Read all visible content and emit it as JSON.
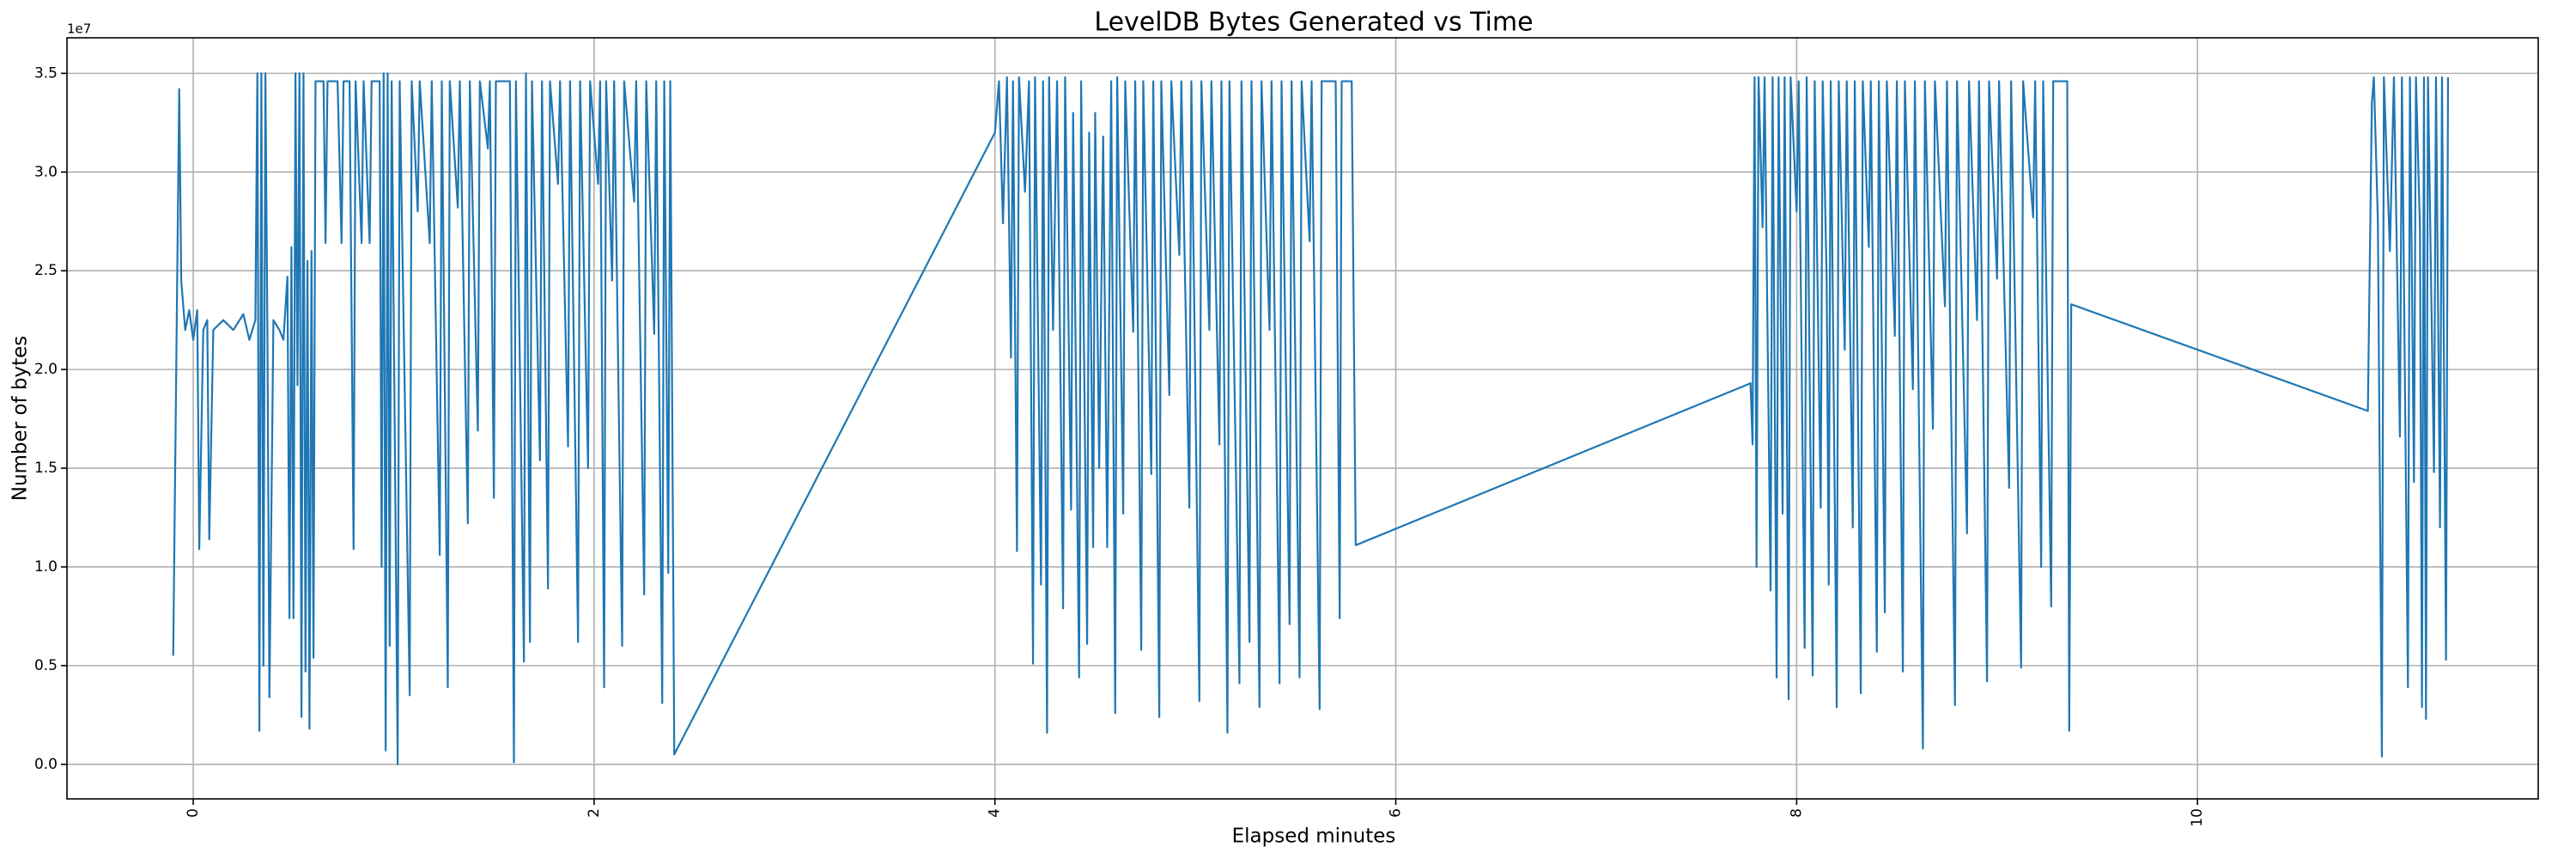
{
  "chart_data": {
    "type": "line",
    "title": "LevelDB Bytes Generated vs Time",
    "x_label": "Elapsed minutes",
    "y_label": "Number of bytes",
    "y_offset_text": "1e7",
    "xlim": [
      -0.63,
      11.7
    ],
    "ylim": [
      -0.175,
      3.68
    ],
    "xticks": [
      0,
      2,
      4,
      6,
      8,
      10
    ],
    "yticks": [
      {
        "value": 0,
        "label": "0.0"
      },
      0.5,
      {
        "value": 1,
        "label": "1.0"
      },
      1.5,
      {
        "value": 2,
        "label": "2.0"
      },
      2.5,
      {
        "value": 3,
        "label": "3.0"
      },
      3.5
    ],
    "grid": true,
    "x": [
      -0.1,
      -0.07,
      -0.06,
      -0.04,
      -0.02,
      0,
      0.02,
      0.03,
      0.05,
      0.07,
      0.08,
      0.1,
      0.15,
      0.2,
      0.25,
      0.28,
      0.31,
      0.32,
      0.33,
      0.34,
      0.35,
      0.36,
      0.37,
      0.38,
      0.4,
      0.43,
      0.45,
      0.47,
      0.48,
      0.49,
      0.5,
      0.51,
      0.52,
      0.53,
      0.54,
      0.55,
      0.56,
      0.57,
      0.58,
      0.59,
      0.6,
      0.61,
      0.65,
      0.66,
      0.67,
      0.72,
      0.74,
      0.75,
      0.78,
      0.8,
      0.81,
      0.84,
      0.85,
      0.88,
      0.89,
      0.93,
      0.94,
      0.95,
      0.96,
      0.97,
      0.98,
      0.99,
      1.02,
      1.03,
      1.08,
      1.09,
      1.12,
      1.13,
      1.18,
      1.19,
      1.23,
      1.24,
      1.27,
      1.28,
      1.32,
      1.33,
      1.37,
      1.38,
      1.42,
      1.43,
      1.47,
      1.48,
      1.5,
      1.51,
      1.58,
      1.6,
      1.61,
      1.65,
      1.66,
      1.68,
      1.69,
      1.73,
      1.74,
      1.77,
      1.78,
      1.82,
      1.83,
      1.87,
      1.88,
      1.92,
      1.93,
      1.97,
      1.98,
      2.02,
      2.03,
      2.05,
      2.06,
      2.09,
      2.1,
      2.14,
      2.15,
      2.2,
      2.21,
      2.25,
      2.26,
      2.3,
      2.31,
      2.34,
      2.35,
      2.37,
      2.38,
      2.4,
      4,
      4.02,
      4.04,
      4.06,
      4.08,
      4.09,
      4.11,
      4.12,
      4.15,
      4.17,
      4.19,
      4.2,
      4.23,
      4.24,
      4.26,
      4.27,
      4.29,
      4.31,
      4.34,
      4.35,
      4.38,
      4.39,
      4.42,
      4.43,
      4.46,
      4.47,
      4.49,
      4.5,
      4.52,
      4.54,
      4.56,
      4.58,
      4.6,
      4.61,
      4.64,
      4.65,
      4.69,
      4.7,
      4.73,
      4.74,
      4.78,
      4.79,
      4.82,
      4.83,
      4.87,
      4.88,
      4.92,
      4.93,
      4.97,
      4.98,
      5.02,
      5.03,
      5.07,
      5.08,
      5.12,
      5.13,
      5.16,
      5.17,
      5.22,
      5.23,
      5.27,
      5.28,
      5.32,
      5.33,
      5.37,
      5.38,
      5.42,
      5.43,
      5.47,
      5.48,
      5.52,
      5.53,
      5.57,
      5.58,
      5.62,
      5.63,
      5.7,
      5.72,
      5.73,
      5.78,
      5.8,
      7.77,
      7.78,
      7.79,
      7.8,
      7.81,
      7.83,
      7.84,
      7.87,
      7.88,
      7.9,
      7.91,
      7.93,
      7.94,
      7.96,
      7.97,
      8,
      8.01,
      8.04,
      8.05,
      8.08,
      8.09,
      8.12,
      8.13,
      8.15,
      8.16,
      8.17,
      8.2,
      8.21,
      8.24,
      8.25,
      8.28,
      8.29,
      8.32,
      8.33,
      8.36,
      8.37,
      8.4,
      8.41,
      8.44,
      8.45,
      8.49,
      8.5,
      8.53,
      8.54,
      8.58,
      8.59,
      8.63,
      8.64,
      8.68,
      8.69,
      8.74,
      8.75,
      8.79,
      8.8,
      8.85,
      8.86,
      8.9,
      8.91,
      8.95,
      8.96,
      9,
      9.01,
      9.06,
      9.07,
      9.12,
      9.13,
      9.18,
      9.19,
      9.22,
      9.23,
      9.27,
      9.28,
      9.35,
      9.36,
      9.37,
      10.85,
      10.87,
      10.88,
      10.9,
      10.92,
      10.93,
      10.96,
      10.98,
      11.01,
      11.02,
      11.05,
      11.06,
      11.08,
      11.09,
      11.11,
      11.12,
      11.13,
      11.14,
      11.15,
      11.18,
      11.19,
      11.21,
      11.22,
      11.24,
      11.25
    ],
    "series": [
      {
        "name": "bytes",
        "color": "#1f77b4",
        "values": [
          0.55,
          3.42,
          2.45,
          2.2,
          2.3,
          2.15,
          2.3,
          1.09,
          2.2,
          2.25,
          1.14,
          2.2,
          2.25,
          2.2,
          2.28,
          2.15,
          2.25,
          3.5,
          0.17,
          3.5,
          0.5,
          3.5,
          2.2,
          0.34,
          2.25,
          2.2,
          2.15,
          2.47,
          0.74,
          2.62,
          0.74,
          3.5,
          1.92,
          3.5,
          0.24,
          3.5,
          0.47,
          2.55,
          0.18,
          2.6,
          0.54,
          3.46,
          3.46,
          2.64,
          3.46,
          3.46,
          2.64,
          3.46,
          3.46,
          1.09,
          3.46,
          2.64,
          3.46,
          2.64,
          3.46,
          3.46,
          1.0,
          3.5,
          0.07,
          3.5,
          0.6,
          3.46,
          0,
          3.46,
          0.35,
          3.46,
          2.8,
          3.46,
          2.64,
          3.46,
          1.06,
          3.46,
          0.39,
          3.46,
          2.82,
          3.46,
          1.22,
          3.46,
          1.69,
          3.46,
          3.12,
          3.46,
          1.35,
          3.46,
          3.46,
          0.01,
          3.46,
          0.52,
          3.5,
          0.62,
          3.46,
          1.54,
          3.46,
          0.89,
          3.46,
          2.94,
          3.46,
          1.61,
          3.46,
          0.62,
          3.46,
          1.5,
          3.46,
          2.94,
          3.46,
          0.39,
          3.46,
          2.45,
          3.46,
          0.6,
          3.46,
          2.85,
          3.46,
          0.86,
          3.46,
          2.18,
          3.46,
          0.31,
          3.46,
          0.97,
          3.46,
          0.05,
          3.2,
          3.46,
          2.74,
          3.48,
          2.06,
          3.46,
          1.08,
          3.48,
          2.9,
          3.46,
          0.51,
          3.48,
          0.91,
          3.46,
          0.16,
          3.48,
          2.2,
          3.46,
          0.79,
          3.48,
          1.29,
          3.3,
          0.44,
          3.46,
          0.61,
          3.2,
          1.1,
          3.3,
          1.5,
          3.18,
          1.1,
          3.46,
          0.26,
          3.48,
          1.27,
          3.46,
          2.19,
          3.46,
          0.58,
          3.46,
          1.47,
          3.46,
          0.24,
          3.46,
          1.87,
          3.46,
          2.58,
          3.46,
          1.3,
          3.46,
          0.32,
          3.46,
          2.2,
          3.46,
          1.62,
          3.46,
          0.16,
          3.46,
          0.41,
          3.46,
          0.62,
          3.46,
          0.29,
          3.46,
          2.2,
          3.46,
          0.41,
          3.46,
          0.71,
          3.46,
          0.44,
          3.46,
          2.65,
          3.46,
          0.28,
          3.46,
          3.46,
          0.74,
          3.46,
          3.46,
          1.11,
          1.93,
          1.62,
          3.48,
          1.0,
          3.48,
          2.72,
          3.48,
          0.88,
          3.48,
          0.44,
          3.48,
          1.27,
          3.48,
          0.33,
          3.48,
          2.8,
          3.46,
          0.59,
          3.48,
          0.45,
          3.46,
          1.3,
          3.46,
          2.44,
          0.91,
          3.46,
          0.29,
          3.46,
          2.1,
          3.46,
          1.2,
          3.46,
          0.36,
          3.46,
          2.62,
          3.46,
          0.57,
          3.46,
          0.77,
          3.46,
          2.17,
          3.46,
          0.47,
          3.46,
          1.9,
          3.46,
          0.08,
          3.46,
          1.7,
          3.46,
          2.32,
          3.46,
          0.3,
          3.46,
          1.17,
          3.46,
          2.25,
          3.46,
          0.42,
          3.46,
          2.46,
          3.46,
          1.4,
          3.46,
          0.49,
          3.46,
          2.77,
          3.46,
          1.0,
          3.46,
          0.8,
          3.46,
          3.46,
          0.17,
          2.33,
          1.79,
          3.35,
          3.48,
          2.75,
          0.04,
          3.48,
          2.6,
          3.48,
          1.66,
          3.48,
          0.39,
          3.48,
          1.43,
          3.48,
          2.71,
          0.29,
          3.48,
          0.23,
          3.48,
          1.48,
          3.48,
          1.2,
          3.48,
          0.53,
          3.48
        ]
      }
    ]
  }
}
